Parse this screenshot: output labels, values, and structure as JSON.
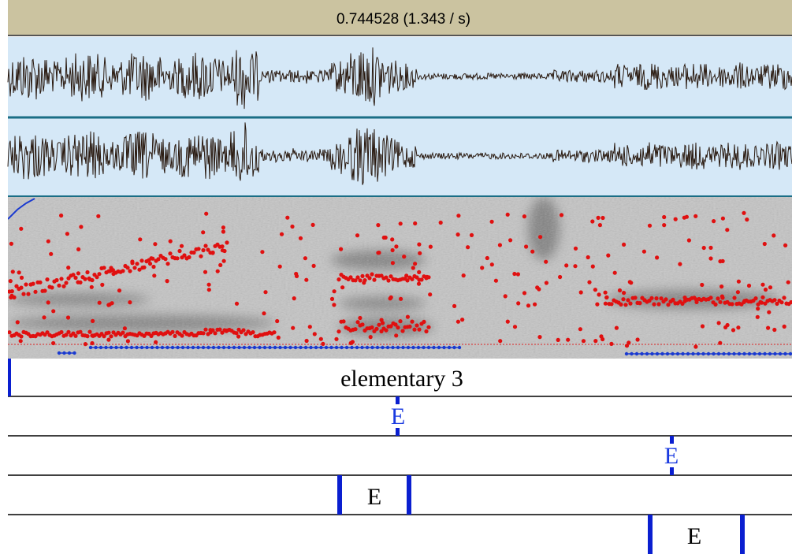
{
  "header": {
    "title": "0.744528 (1.343 / s)"
  },
  "tiers": [
    {
      "label": "elementary 3"
    },
    {
      "label": "E"
    },
    {
      "label": "E"
    },
    {
      "label": "E"
    },
    {
      "label": "E"
    }
  ]
}
